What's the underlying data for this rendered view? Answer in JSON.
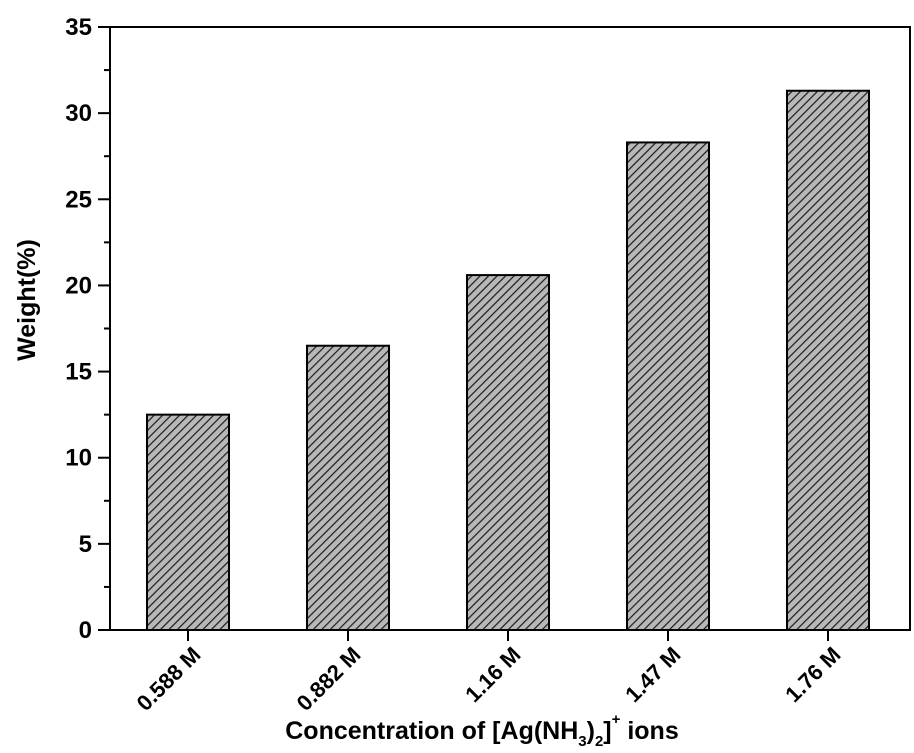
{
  "chart_data": {
    "type": "bar",
    "title": "",
    "xlabel": {
      "before": "Concentration of [Ag(NH",
      "sub1": "3",
      "mid": ")",
      "sub2": "2",
      "close": "]",
      "sup": "+",
      "after": " ions"
    },
    "ylabel": "Weight(%)",
    "ylim": [
      0,
      35
    ],
    "yticks": [
      "0",
      "5",
      "10",
      "15",
      "20",
      "25",
      "30",
      "35"
    ],
    "categories": [
      "0.588 M",
      "0.882 M",
      "1.16 M",
      "1.47 M",
      "1.76 M"
    ],
    "values": [
      12.5,
      16.5,
      20.6,
      28.3,
      31.3
    ],
    "grid": false,
    "bar_fill": "#b8b8b8",
    "hatch_color": "#1a1a1a"
  }
}
